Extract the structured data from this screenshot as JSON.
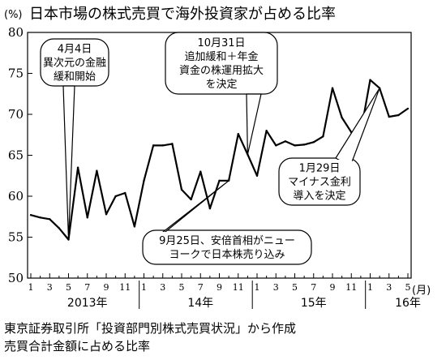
{
  "chart_data": {
    "type": "line",
    "title": "日本市場の株式売買で海外投資家が占める比率",
    "ylabel": "(%)",
    "xlabel": "(月)",
    "ylim": [
      50,
      80
    ],
    "yticks": [
      50,
      55,
      60,
      65,
      70,
      75,
      80
    ],
    "grid": false,
    "month_ticks": [
      "1",
      "3",
      "5",
      "7",
      "9",
      "11",
      "1",
      "3",
      "5",
      "7",
      "9",
      "11",
      "1",
      "3",
      "5",
      "7",
      "9",
      "11",
      "1",
      "3",
      "5"
    ],
    "year_labels": [
      {
        "label": "2013年",
        "at_month": 6
      },
      {
        "label": "14年",
        "at_month": 18
      },
      {
        "label": "15年",
        "at_month": 30
      },
      {
        "label": "16年",
        "at_month": 40
      }
    ],
    "series": [
      {
        "values": [
          57.7,
          57.4,
          57.2,
          56.1,
          54.7,
          63.5,
          57.4,
          63.1,
          57.8,
          60.0,
          60.4,
          56.3,
          61.9,
          66.2,
          66.2,
          66.4,
          60.8,
          59.6,
          63.0,
          58.5,
          61.9,
          61.9,
          67.6,
          65.1,
          62.5,
          68.0,
          66.2,
          66.7,
          66.2,
          66.3,
          66.6,
          67.3,
          73.2,
          69.6,
          67.8,
          67.8,
          74.2,
          73.2,
          69.7,
          69.9,
          70.7
        ]
      }
    ],
    "annotations": [
      {
        "lines": [
          "4月4日",
          "異次元の金融",
          "緩和開始"
        ],
        "month": 4
      },
      {
        "lines": [
          "10月31日",
          "追加緩和＋年金",
          "資金の株運用拡大",
          "を決定"
        ],
        "month": 23
      },
      {
        "lines": [
          "9月25日、安倍首相がニュー",
          "ヨークで日本株売り込み"
        ],
        "month": 21
      },
      {
        "lines": [
          "1月29日",
          "マイナス金利",
          "導入を決定"
        ],
        "month": 37
      }
    ]
  },
  "footer": {
    "source_line1": "東京証券取引所「投資部門別株式売買状況」から作成",
    "source_line2": "売買合計金額に占める比率"
  }
}
